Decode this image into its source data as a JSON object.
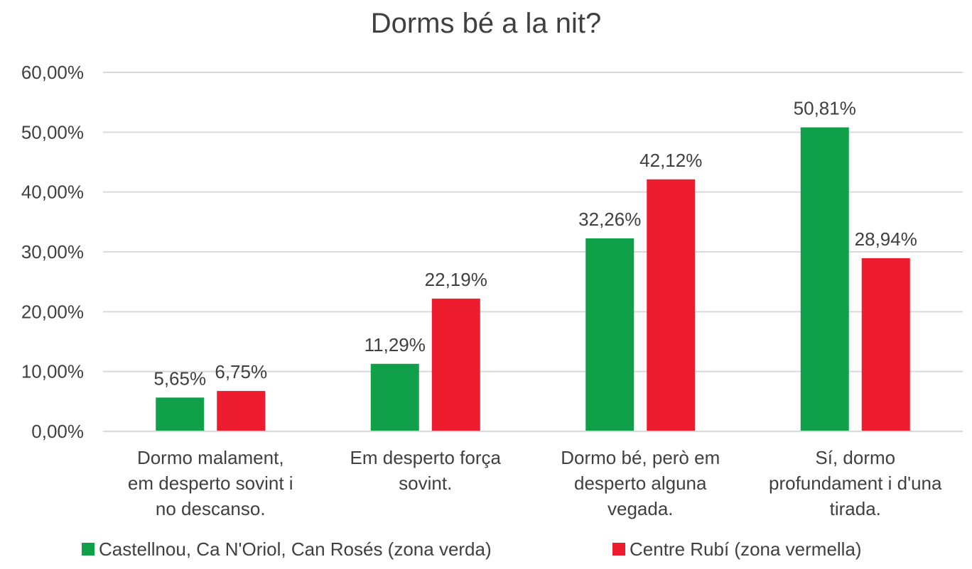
{
  "chart_data": {
    "type": "bar",
    "title": "Dorms bé a la nit?",
    "xlabel": "",
    "ylabel": "",
    "ylim": [
      0,
      60
    ],
    "yticks": [
      "0,00%",
      "10,00%",
      "20,00%",
      "30,00%",
      "40,00%",
      "50,00%",
      "60,00%"
    ],
    "ytick_values": [
      0,
      10,
      20,
      30,
      40,
      50,
      60
    ],
    "grid": true,
    "legend_position": "bottom",
    "categories": [
      [
        "Dormo malament,",
        "em desperto sovint i",
        "no descanso."
      ],
      [
        "Em desperto força",
        "sovint."
      ],
      [
        "Dormo bé, però em",
        "desperto alguna",
        "vegada."
      ],
      [
        "Sí, dormo",
        "profundament i d'una",
        "tirada."
      ]
    ],
    "series": [
      {
        "name": "Castellnou, Ca N'Oriol, Can Rosés (zona verda)",
        "color": "#11a04a",
        "values": [
          5.65,
          11.29,
          32.26,
          50.81
        ],
        "labels": [
          "5,65%",
          "11,29%",
          "32,26%",
          "50,81%"
        ]
      },
      {
        "name": "Centre Rubí (zona vermella)",
        "color": "#ed1c2e",
        "values": [
          6.75,
          22.19,
          42.12,
          28.94
        ],
        "labels": [
          "6,75%",
          "22,19%",
          "42,12%",
          "28,94%"
        ]
      }
    ]
  }
}
